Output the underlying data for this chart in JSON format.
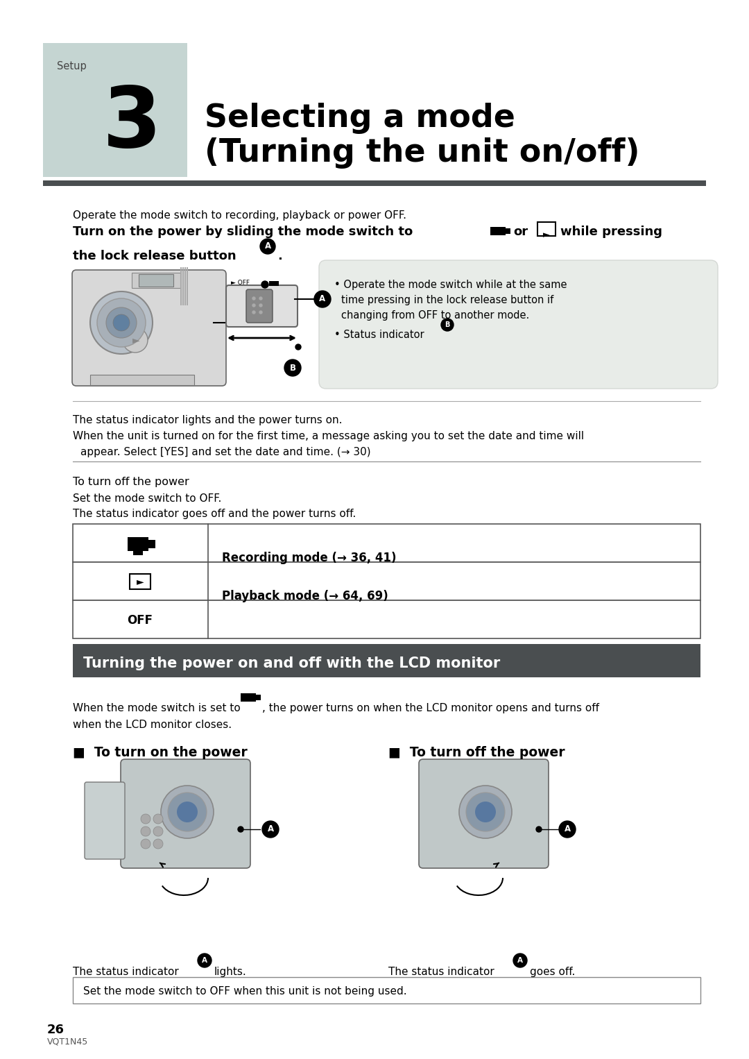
{
  "page_bg": "#ffffff",
  "header_bg": "#c5d5d2",
  "header_label": "Setup",
  "header_number": "3",
  "title_line1": "Selecting a mode",
  "title_line2": "(Turning the unit on/off)",
  "separator_color": "#555555",
  "intro_text": "Operate the mode switch to recording, playback or power OFF.",
  "status_text1": "The status indicator lights and the power turns on.",
  "bullet_time1": "When the unit is turned on for the first time, a message asking you to set the date and time will",
  "bullet_time2": "appear. Select [YES] and set the date and time. (→ 30)",
  "turnoff_heading": "To turn off the power",
  "turnoff_text1": "Set the mode switch to OFF.",
  "turnoff_text2": "The status indicator goes off and the power turns off.",
  "table_row1_text": "Recording mode (→ 36, 41)",
  "table_row2_text": "Playback mode (→ 64, 69)",
  "table_row3_icon": "OFF",
  "section2_bg": "#4a4e50",
  "section2_text": "Turning the power on and off with the LCD monitor",
  "section2_text_color": "#ffffff",
  "turn_on_heading": "■  To turn on the power",
  "turn_off_heading": "■  To turn off the power",
  "lcd_intro1": "When the mode switch is set to",
  "lcd_intro2": ", the power turns on when the LCD monitor opens and turns off",
  "lcd_intro3": "when the LCD monitor closes.",
  "notice_text": "Set the mode switch to OFF when this unit is not being used.",
  "page_num": "26",
  "model": "VQT1N45",
  "bullet1_line1": "• Operate the mode switch while at the same",
  "bullet1_line2": "time pressing in the lock release button if",
  "bullet1_line3": "changing from OFF to another mode.",
  "bullet2_text": "• Status indicator"
}
